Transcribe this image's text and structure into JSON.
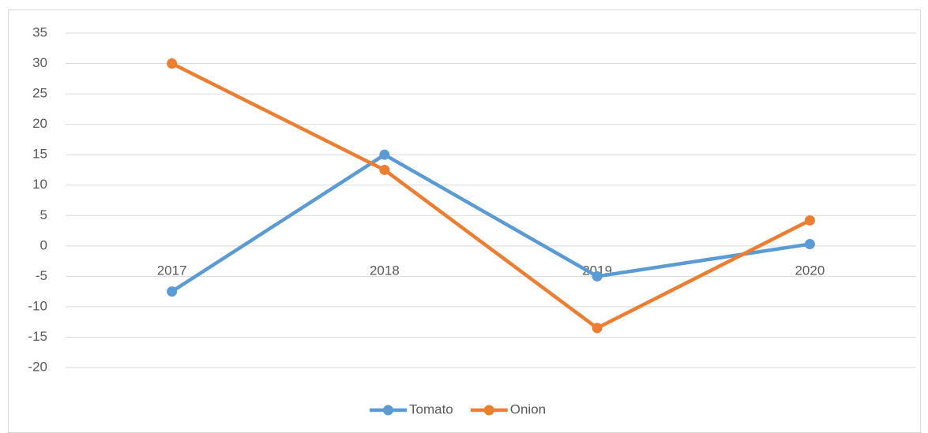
{
  "chart_data": {
    "type": "line",
    "categories": [
      "2017",
      "2018",
      "2019",
      "2020"
    ],
    "series": [
      {
        "name": "Tomato",
        "color": "#5b9bd5",
        "values": [
          -7.5,
          15,
          -5,
          0.3
        ]
      },
      {
        "name": "Onion",
        "color": "#ed7d31",
        "values": [
          30,
          12.5,
          -13.5,
          4.2
        ]
      }
    ],
    "ylim": [
      -20,
      35
    ],
    "yticks": [
      -20,
      -15,
      -10,
      -5,
      0,
      5,
      10,
      15,
      20,
      25,
      30,
      35
    ],
    "grid": true,
    "legend": "bottom"
  }
}
